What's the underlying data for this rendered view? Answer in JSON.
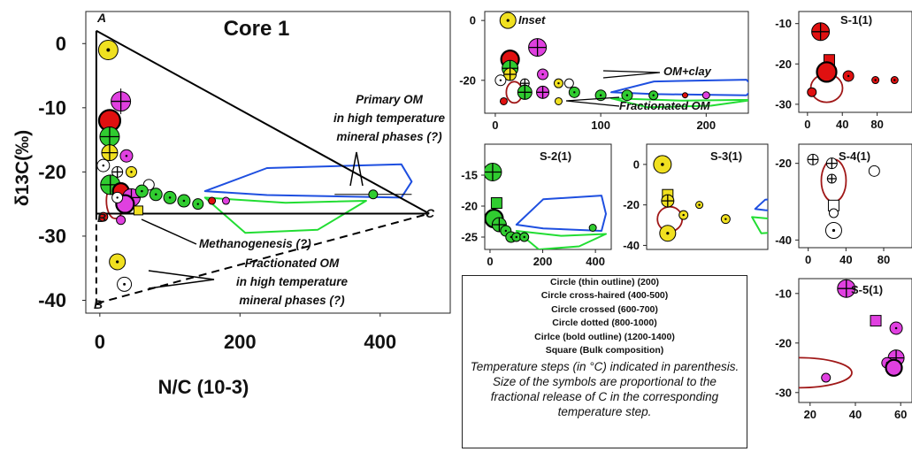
{
  "chart_data": [
    {
      "type": "scatter",
      "title": "Core 1",
      "ylabel": "δ13C(‰)",
      "xlabel": "N/C (10-3)",
      "xlim": [
        -20,
        500
      ],
      "ylim": [
        -42,
        5
      ],
      "xticks": [
        "0",
        "200",
        "400"
      ],
      "yticks": [
        "0",
        "-10",
        "-20",
        "-30",
        "-40"
      ],
      "vertices": {
        "A": "A",
        "B": "B",
        "C": "C",
        "B_prime": "B"
      },
      "annotations": {
        "primary_om": [
          "Primary OM",
          "in high temperature",
          "mineral phases (?)"
        ],
        "methanogenesis": "Methanogenesis (?)",
        "fractionated_om": [
          "Fractionated OM",
          "in high temperature",
          "mineral phases (?)"
        ]
      },
      "points": [
        {
          "x": 12,
          "y": -1,
          "c": "#f0e020",
          "s": "circle-dotted",
          "r": 11
        },
        {
          "x": 30,
          "y": -9,
          "c": "#e040e0",
          "s": "circle-crossed",
          "r": 11
        },
        {
          "x": 14,
          "y": -12,
          "c": "#e01010",
          "s": "circle-bold",
          "r": 12
        },
        {
          "x": 14,
          "y": -14.5,
          "c": "#30cc30",
          "s": "circle-crossed",
          "r": 11
        },
        {
          "x": 14,
          "y": -17,
          "c": "#f0e020",
          "s": "circle-crossed",
          "r": 9
        },
        {
          "x": 38,
          "y": -17.5,
          "c": "#e040e0",
          "s": "circle-dotted",
          "r": 7
        },
        {
          "x": 5,
          "y": -19,
          "c": "#ffffff",
          "s": "circle-dotted",
          "r": 7
        },
        {
          "x": 25,
          "y": -20,
          "c": "#ffffff",
          "s": "circle-crossed",
          "r": 6
        },
        {
          "x": 45,
          "y": -20,
          "c": "#f0e020",
          "s": "circle-dotted",
          "r": 6
        },
        {
          "x": 15,
          "y": -22,
          "c": "#30cc30",
          "s": "circle-crossed",
          "r": 11
        },
        {
          "x": 70,
          "y": -22,
          "c": "#ffffff",
          "s": "circle-thin",
          "r": 6
        },
        {
          "x": 30,
          "y": -23,
          "c": "#e01010",
          "s": "circle-bold",
          "r": 9
        },
        {
          "x": 45,
          "y": -24,
          "c": "#e040e0",
          "s": "circle-crossed",
          "r": 10
        },
        {
          "x": 36,
          "y": -25,
          "c": "#e040e0",
          "s": "circle-bold",
          "r": 10
        },
        {
          "x": 25,
          "y": -24,
          "c": "#ffffff",
          "s": "circle-dotted",
          "r": 6
        },
        {
          "x": 60,
          "y": -23,
          "c": "#30cc30",
          "s": "circle-dotted",
          "r": 7
        },
        {
          "x": 80,
          "y": -23.5,
          "c": "#30cc30",
          "s": "circle-dotted",
          "r": 7
        },
        {
          "x": 100,
          "y": -24,
          "c": "#30cc30",
          "s": "circle-dotted",
          "r": 7
        },
        {
          "x": 120,
          "y": -24.5,
          "c": "#30cc30",
          "s": "circle-dotted",
          "r": 7
        },
        {
          "x": 140,
          "y": -25,
          "c": "#30cc30",
          "s": "circle-dotted",
          "r": 6
        },
        {
          "x": 160,
          "y": -24.5,
          "c": "#e01010",
          "s": "circle-thin",
          "r": 4
        },
        {
          "x": 180,
          "y": -24.5,
          "c": "#e040e0",
          "s": "circle-thin",
          "r": 4
        },
        {
          "x": 55,
          "y": -26,
          "c": "#f0e020",
          "s": "square",
          "r": 5
        },
        {
          "x": 5,
          "y": -27,
          "c": "#e01010",
          "s": "circle-thin",
          "r": 5
        },
        {
          "x": 30,
          "y": -27.5,
          "c": "#e040e0",
          "s": "circle-thin",
          "r": 5
        },
        {
          "x": 390,
          "y": -23.5,
          "c": "#30cc30",
          "s": "circle-thin",
          "r": 5
        },
        {
          "x": 25,
          "y": -34,
          "c": "#f0e020",
          "s": "circle-dotted",
          "r": 9
        },
        {
          "x": 35,
          "y": -37.5,
          "c": "#ffffff",
          "s": "circle-dotted",
          "r": 8
        }
      ]
    },
    {
      "type": "scatter",
      "title": "Inset",
      "xlim": [
        -10,
        240
      ],
      "ylim": [
        -31,
        3
      ],
      "xticks": [
        "0",
        "100",
        "200"
      ],
      "yticks": [
        "0",
        "-20"
      ],
      "annotations": {
        "om_clay": "OM+clay",
        "fractionated": "Fractionated OM"
      },
      "points": [
        {
          "x": 12,
          "y": 0,
          "c": "#f0e020",
          "s": "circle-dotted",
          "r": 9
        },
        {
          "x": 40,
          "y": -9,
          "c": "#e040e0",
          "s": "circle-crossed",
          "r": 10
        },
        {
          "x": 14,
          "y": -13,
          "c": "#e01010",
          "s": "circle-bold",
          "r": 10
        },
        {
          "x": 14,
          "y": -16,
          "c": "#30cc30",
          "s": "circle-crossed",
          "r": 9
        },
        {
          "x": 14,
          "y": -18,
          "c": "#f0e020",
          "s": "circle-crossed",
          "r": 7
        },
        {
          "x": 45,
          "y": -18,
          "c": "#e040e0",
          "s": "circle-dotted",
          "r": 6
        },
        {
          "x": 5,
          "y": -20,
          "c": "#ffffff",
          "s": "circle-dotted",
          "r": 6
        },
        {
          "x": 28,
          "y": -21,
          "c": "#ffffff",
          "s": "circle-crossed",
          "r": 5
        },
        {
          "x": 28,
          "y": -23,
          "c": "#ffffff",
          "s": "circle-dotted",
          "r": 5
        },
        {
          "x": 70,
          "y": -21,
          "c": "#ffffff",
          "s": "circle-thin",
          "r": 5
        },
        {
          "x": 60,
          "y": -21,
          "c": "#f0e020",
          "s": "circle-dotted",
          "r": 5
        },
        {
          "x": 28,
          "y": -24,
          "c": "#30cc30",
          "s": "circle-crossed",
          "r": 8
        },
        {
          "x": 45,
          "y": -24,
          "c": "#e040e0",
          "s": "circle-crossed",
          "r": 7
        },
        {
          "x": 75,
          "y": -24,
          "c": "#30cc30",
          "s": "circle-dotted",
          "r": 6
        },
        {
          "x": 100,
          "y": -25,
          "c": "#30cc30",
          "s": "circle-dotted",
          "r": 6
        },
        {
          "x": 125,
          "y": -25,
          "c": "#30cc30",
          "s": "circle-dotted",
          "r": 6
        },
        {
          "x": 150,
          "y": -25,
          "c": "#30cc30",
          "s": "circle-dotted",
          "r": 5
        },
        {
          "x": 180,
          "y": -25,
          "c": "#e01010",
          "s": "circle-thin",
          "r": 3
        },
        {
          "x": 200,
          "y": -25,
          "c": "#e040e0",
          "s": "circle-thin",
          "r": 4
        },
        {
          "x": 60,
          "y": -27,
          "c": "#f0e020",
          "s": "circle-thin",
          "r": 4
        },
        {
          "x": 8,
          "y": -27,
          "c": "#e01010",
          "s": "circle-thin",
          "r": 4
        }
      ]
    },
    {
      "type": "scatter",
      "title": "S-1(1)",
      "xlim": [
        -10,
        120
      ],
      "ylim": [
        -32,
        -7
      ],
      "xticks": [
        "0",
        "40",
        "80"
      ],
      "yticks": [
        "-10",
        "-20",
        "-30"
      ],
      "points": [
        {
          "x": 15,
          "y": -12,
          "c": "#e01010",
          "s": "circle-crossed",
          "r": 10
        },
        {
          "x": 25,
          "y": -19,
          "c": "#e01010",
          "s": "square",
          "r": 6
        },
        {
          "x": 22,
          "y": -22,
          "c": "#e01010",
          "s": "circle-bold",
          "r": 11
        },
        {
          "x": 47,
          "y": -23,
          "c": "#e01010",
          "s": "circle-dotted",
          "r": 6
        },
        {
          "x": 78,
          "y": -24,
          "c": "#e01010",
          "s": "circle-dotted",
          "r": 4
        },
        {
          "x": 100,
          "y": -24,
          "c": "#e01010",
          "s": "circle-dotted",
          "r": 4
        },
        {
          "x": 5,
          "y": -27,
          "c": "#e01010",
          "s": "circle-thin",
          "r": 5
        }
      ]
    },
    {
      "type": "scatter",
      "title": "S-2(1)",
      "xlim": [
        -20,
        460
      ],
      "ylim": [
        -27,
        -10
      ],
      "xticks": [
        "0",
        "200",
        "400"
      ],
      "yticks": [
        "-15",
        "-20",
        "-25"
      ],
      "points": [
        {
          "x": 10,
          "y": -14.5,
          "c": "#30cc30",
          "s": "circle-crossed",
          "r": 10
        },
        {
          "x": 25,
          "y": -19.5,
          "c": "#30cc30",
          "s": "square",
          "r": 6
        },
        {
          "x": 15,
          "y": -22,
          "c": "#30cc30",
          "s": "circle-bold",
          "r": 10
        },
        {
          "x": 35,
          "y": -23,
          "c": "#30cc30",
          "s": "circle-crossed",
          "r": 8
        },
        {
          "x": 60,
          "y": -24,
          "c": "#30cc30",
          "s": "circle-dotted",
          "r": 6
        },
        {
          "x": 80,
          "y": -25,
          "c": "#30cc30",
          "s": "circle-dotted",
          "r": 6
        },
        {
          "x": 100,
          "y": -25,
          "c": "#30cc30",
          "s": "circle-dotted",
          "r": 5
        },
        {
          "x": 130,
          "y": -25,
          "c": "#30cc30",
          "s": "circle-dotted",
          "r": 5
        },
        {
          "x": 390,
          "y": -23.5,
          "c": "#30cc30",
          "s": "circle-thin",
          "r": 4
        }
      ]
    },
    {
      "type": "scatter",
      "title": "S-3(1)",
      "xlim": [
        -5,
        110
      ],
      "ylim": [
        -42,
        10
      ],
      "xticks": [],
      "yticks": [
        "0",
        "-20",
        "-40"
      ],
      "points": [
        {
          "x": 10,
          "y": 0,
          "c": "#f0e020",
          "s": "circle-dotted",
          "r": 10
        },
        {
          "x": 15,
          "y": -15,
          "c": "#f0e020",
          "s": "square",
          "r": 6
        },
        {
          "x": 15,
          "y": -18,
          "c": "#f0e020",
          "s": "circle-crossed",
          "r": 7
        },
        {
          "x": 30,
          "y": -25,
          "c": "#f0e020",
          "s": "circle-dotted",
          "r": 5
        },
        {
          "x": 45,
          "y": -20,
          "c": "#f0e020",
          "s": "circle-dotted",
          "r": 4
        },
        {
          "x": 70,
          "y": -27,
          "c": "#f0e020",
          "s": "circle-dotted",
          "r": 5
        },
        {
          "x": 15,
          "y": -34,
          "c": "#f0e020",
          "s": "circle-dotted",
          "r": 9
        }
      ]
    },
    {
      "type": "scatter",
      "title": "S-4(1)",
      "xlim": [
        -10,
        110
      ],
      "ylim": [
        -42,
        -15
      ],
      "xticks": [
        "0",
        "40",
        "80"
      ],
      "yticks": [
        "-20",
        "-40"
      ],
      "points": [
        {
          "x": 5,
          "y": -19,
          "c": "#ffffff",
          "s": "circle-crossed",
          "r": 6
        },
        {
          "x": 25,
          "y": -20,
          "c": "#ffffff",
          "s": "circle-crossed",
          "r": 6
        },
        {
          "x": 25,
          "y": -24,
          "c": "#ffffff",
          "s": "circle-crossed",
          "r": 5
        },
        {
          "x": 70,
          "y": -22,
          "c": "#ffffff",
          "s": "circle-thin",
          "r": 6
        },
        {
          "x": 27,
          "y": -31,
          "c": "#ffffff",
          "s": "square",
          "r": 6
        },
        {
          "x": 27,
          "y": -33,
          "c": "#ffffff",
          "s": "circle-thin",
          "r": 5
        },
        {
          "x": 27,
          "y": -37.5,
          "c": "#ffffff",
          "s": "circle-dotted",
          "r": 9
        }
      ]
    },
    {
      "type": "scatter",
      "title": "S-5(1)",
      "xlim": [
        15,
        65
      ],
      "ylim": [
        -32,
        -7
      ],
      "xticks": [
        "20",
        "40",
        "60"
      ],
      "yticks": [
        "-10",
        "-20",
        "-30"
      ],
      "points": [
        {
          "x": 36,
          "y": -9,
          "c": "#e040e0",
          "s": "circle-crossed",
          "r": 10
        },
        {
          "x": 49,
          "y": -15.5,
          "c": "#e040e0",
          "s": "square",
          "r": 6
        },
        {
          "x": 58,
          "y": -17,
          "c": "#e040e0",
          "s": "circle-dotted",
          "r": 7
        },
        {
          "x": 58,
          "y": -23,
          "c": "#e040e0",
          "s": "circle-crossed",
          "r": 9
        },
        {
          "x": 54,
          "y": -24,
          "c": "#e040e0",
          "s": "circle-dotted",
          "r": 6
        },
        {
          "x": 57,
          "y": -25,
          "c": "#e040e0",
          "s": "circle-bold",
          "r": 9
        },
        {
          "x": 27,
          "y": -27,
          "c": "#e040e0",
          "s": "circle-thin",
          "r": 5
        }
      ]
    }
  ],
  "legend": {
    "items": [
      "Circle (thin outline) (200)",
      "Circle cross-haired (400-500)",
      "Circle crossed (600-700)",
      "Circle dotted (800-1000)",
      "Cirlce (bold outline) (1200-1400)",
      "Square (Bulk composition)"
    ],
    "note": "Temperature steps (in °C) indicated in parenthesis. Size of the symbols are proportional to the fractional release of C in the corresponding temperature step."
  }
}
